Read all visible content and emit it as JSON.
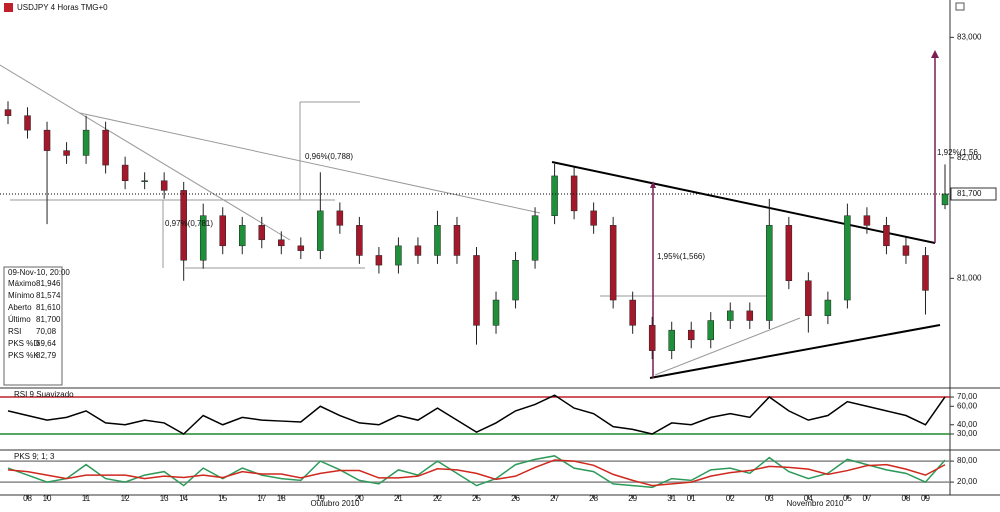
{
  "header": {
    "title": "USDJPY 4 Horas TMG+0"
  },
  "info_box": {
    "date": "09-Nov-10, 20:00",
    "rows": [
      [
        "Máximo",
        "81,946"
      ],
      [
        "Mínimo",
        "81,574"
      ],
      [
        "Aberto",
        "81,610"
      ],
      [
        "Último",
        "81,700"
      ],
      [
        "RSI",
        "70,08"
      ],
      [
        "PKS %D",
        "69,64"
      ],
      [
        "PKS %K",
        "82,79"
      ]
    ]
  },
  "months": [
    "Outubro 2010",
    "Novembro 2010"
  ],
  "chart_data": [
    {
      "type": "candlestick",
      "categories": [
        null,
        "08",
        "10",
        null,
        "11",
        null,
        "12",
        null,
        "13",
        "14",
        null,
        "15",
        null,
        "17",
        "18",
        null,
        "19",
        null,
        "20",
        null,
        "21",
        null,
        "22",
        null,
        "25",
        null,
        "26",
        null,
        "27",
        null,
        "28",
        null,
        "29",
        null,
        "31",
        "01",
        null,
        "02",
        null,
        "03",
        null,
        "04",
        null,
        "05",
        "07",
        null,
        "08",
        "09",
        null
      ],
      "open": [
        82.4,
        82.35,
        82.23,
        82.06,
        82.02,
        82.23,
        81.94,
        81.81,
        81.81,
        81.73,
        81.15,
        81.52,
        81.27,
        81.44,
        81.32,
        81.27,
        81.23,
        81.56,
        81.44,
        81.19,
        81.11,
        81.27,
        81.19,
        81.44,
        81.19,
        80.61,
        80.82,
        81.15,
        81.52,
        81.85,
        81.56,
        81.44,
        80.82,
        80.61,
        80.4,
        80.57,
        80.49,
        80.65,
        80.73,
        80.65,
        81.44,
        80.98,
        80.69,
        80.82,
        81.52,
        81.44,
        81.27,
        81.19,
        81.61
      ],
      "high": [
        82.47,
        82.42,
        82.3,
        82.13,
        82.35,
        82.3,
        82.01,
        81.88,
        81.88,
        81.8,
        81.62,
        81.59,
        81.51,
        81.51,
        81.39,
        81.34,
        81.88,
        81.63,
        81.51,
        81.26,
        81.34,
        81.34,
        81.56,
        81.51,
        81.26,
        80.89,
        81.22,
        81.59,
        81.95,
        81.92,
        81.63,
        81.51,
        80.89,
        80.68,
        80.64,
        80.64,
        80.72,
        80.8,
        80.8,
        81.66,
        81.51,
        81.05,
        80.89,
        81.62,
        81.59,
        81.51,
        81.34,
        81.26,
        81.946
      ],
      "low": [
        82.28,
        82.16,
        81.45,
        81.95,
        81.95,
        81.87,
        81.74,
        81.74,
        81.66,
        80.98,
        81.08,
        81.2,
        81.2,
        81.25,
        81.2,
        81.16,
        81.16,
        81.37,
        81.12,
        81.04,
        81.04,
        81.12,
        81.12,
        81.12,
        80.45,
        80.54,
        80.75,
        81.08,
        81.45,
        81.49,
        81.37,
        80.75,
        80.54,
        80.33,
        80.33,
        80.42,
        80.42,
        80.58,
        80.58,
        80.58,
        80.91,
        80.55,
        80.62,
        80.75,
        81.37,
        81.2,
        81.12,
        80.7,
        81.574
      ],
      "close": [
        82.35,
        82.23,
        82.06,
        82.02,
        82.23,
        81.94,
        81.81,
        81.81,
        81.73,
        81.15,
        81.52,
        81.27,
        81.44,
        81.32,
        81.27,
        81.23,
        81.56,
        81.44,
        81.19,
        81.11,
        81.27,
        81.19,
        81.44,
        81.19,
        80.61,
        80.82,
        81.15,
        81.52,
        81.85,
        81.56,
        81.44,
        80.82,
        80.61,
        80.4,
        80.57,
        80.49,
        80.65,
        80.73,
        80.65,
        81.44,
        80.98,
        80.69,
        80.82,
        81.52,
        81.44,
        81.27,
        81.19,
        80.9,
        81.7
      ],
      "up_color": "#1f8f3a",
      "down_color": "#a3182b",
      "ylim": [
        80.09,
        83.31
      ],
      "yticks": [
        {
          "value": 83,
          "label": "83,000"
        },
        {
          "value": 82,
          "label": "82,000"
        },
        {
          "value": 81,
          "label": "81,000"
        }
      ],
      "last_price": {
        "value": 81.7,
        "label": "81,700"
      },
      "annotations": [
        "0,96%(0,788)",
        "0,97%(0,781)",
        "1,95%(1,566)",
        "1,92%(1,56"
      ]
    },
    {
      "type": "line",
      "title": "RSI 9 Suavizado",
      "series": [
        {
          "color": "#000000",
          "values": [
            55,
            50,
            45,
            48,
            55,
            42,
            40,
            45,
            42,
            30,
            50,
            40,
            48,
            45,
            44,
            43,
            60,
            50,
            42,
            40,
            50,
            45,
            58,
            45,
            32,
            42,
            55,
            62,
            72,
            58,
            52,
            38,
            35,
            30,
            42,
            40,
            48,
            52,
            48,
            70,
            55,
            45,
            50,
            65,
            60,
            55,
            50,
            40,
            70.08
          ]
        }
      ],
      "ylim": [
        12.7,
        77.6
      ],
      "yticks": [
        {
          "value": 70,
          "label": "70,00"
        },
        {
          "value": 60,
          "label": "60,00"
        },
        {
          "value": 40,
          "label": "40,00"
        },
        {
          "value": 30,
          "label": "30,00"
        }
      ],
      "levels": [
        {
          "value": 70,
          "color": "#c0202a"
        },
        {
          "value": 30,
          "color": "#1f8a2a"
        }
      ]
    },
    {
      "type": "line",
      "title": "PKS 9; 1; 3",
      "series": [
        {
          "color": "#2e9a5a",
          "values": [
            60,
            40,
            20,
            30,
            70,
            30,
            20,
            40,
            50,
            10,
            60,
            30,
            60,
            40,
            30,
            25,
            80,
            55,
            25,
            15,
            55,
            40,
            80,
            45,
            10,
            30,
            70,
            85,
            95,
            60,
            50,
            15,
            10,
            5,
            30,
            25,
            55,
            60,
            45,
            90,
            50,
            30,
            45,
            85,
            70,
            55,
            45,
            20,
            82.79
          ]
        },
        {
          "color": "#d0281e",
          "values": [
            55,
            50,
            40,
            30,
            40,
            40,
            40,
            30,
            37,
            33,
            40,
            33,
            50,
            43,
            43,
            32,
            45,
            53,
            53,
            32,
            32,
            37,
            58,
            55,
            45,
            28,
            37,
            62,
            83,
            80,
            68,
            42,
            25,
            10,
            15,
            20,
            37,
            47,
            53,
            65,
            62,
            57,
            42,
            53,
            67,
            70,
            57,
            40,
            69.64
          ]
        }
      ],
      "ylim": [
        -14,
        106
      ],
      "yticks": [
        {
          "value": 80,
          "label": "80,00"
        },
        {
          "value": 20,
          "label": "20,00"
        }
      ],
      "levels": [
        {
          "value": 80,
          "color": "#888888"
        },
        {
          "value": 20,
          "color": "#888888"
        }
      ]
    }
  ]
}
